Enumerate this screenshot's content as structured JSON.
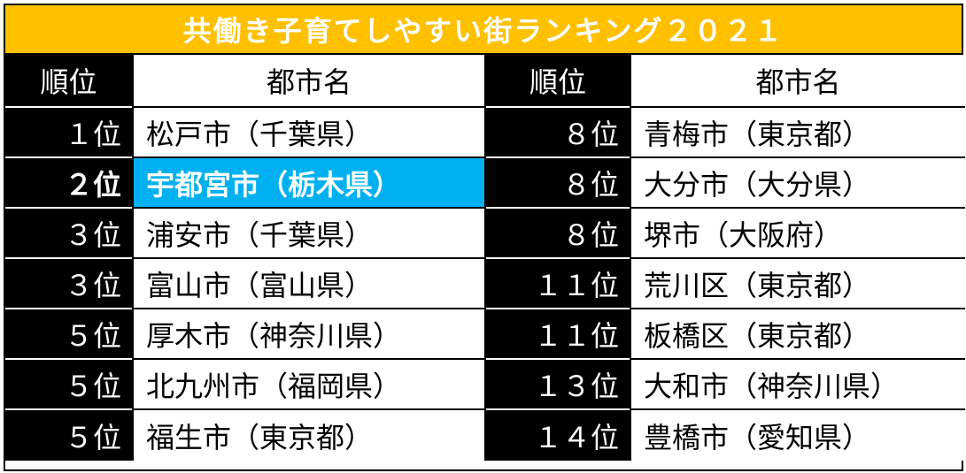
{
  "title": "共働き子育てしやすい街ランキング２０２１",
  "header": {
    "rank": "順位",
    "city": "都市名"
  },
  "left_rows": [
    {
      "rank": "１位",
      "city": "松戸市（千葉県）"
    },
    {
      "rank": "２位",
      "city": "宇都宮市（栃木県）"
    },
    {
      "rank": "３位",
      "city": "浦安市（千葉県）"
    },
    {
      "rank": "３位",
      "city": "富山市（富山県）"
    },
    {
      "rank": "５位",
      "city": "厚木市（神奈川県）"
    },
    {
      "rank": "５位",
      "city": "北九州市（福岡県）"
    },
    {
      "rank": "５位",
      "city": "福生市（東京都）"
    }
  ],
  "right_rows": [
    {
      "rank": "８位",
      "city": "青梅市（東京都）"
    },
    {
      "rank": "８位",
      "city": "大分市（大分県）"
    },
    {
      "rank": "８位",
      "city": "堺市（大阪府）"
    },
    {
      "rank": "１１位",
      "city": "荒川区（東京都）"
    },
    {
      "rank": "１１位",
      "city": "板橋区（東京都）"
    },
    {
      "rank": "１３位",
      "city": "大和市（神奈川県）"
    },
    {
      "rank": "１４位",
      "city": "豊橋市（愛知県）"
    }
  ],
  "colors": {
    "title_bg": "#ffc000",
    "highlight_bg": "#00b0f0",
    "rank_bg": "#000000"
  }
}
